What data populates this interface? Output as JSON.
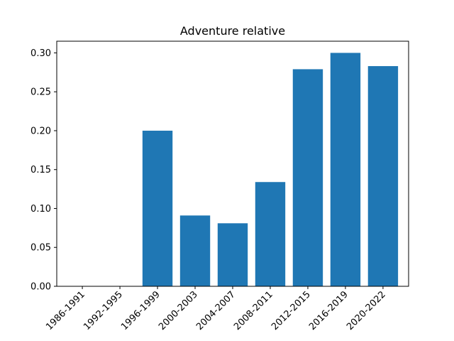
{
  "chart_data": {
    "type": "bar",
    "title": "Adventure relative",
    "xlabel": "",
    "ylabel": "",
    "categories": [
      "1986-1991",
      "1992-1995",
      "1996-1999",
      "2000-2003",
      "2004-2007",
      "2008-2011",
      "2012-2015",
      "2016-2019",
      "2020-2022"
    ],
    "values": [
      0,
      0,
      0.2,
      0.091,
      0.081,
      0.134,
      0.279,
      0.3,
      0.283
    ],
    "ylim": [
      0,
      0.315
    ],
    "yticks": [
      "0.00",
      "0.05",
      "0.10",
      "0.15",
      "0.20",
      "0.25",
      "0.30"
    ],
    "grid": false,
    "bar_color": "#1f77b4"
  }
}
